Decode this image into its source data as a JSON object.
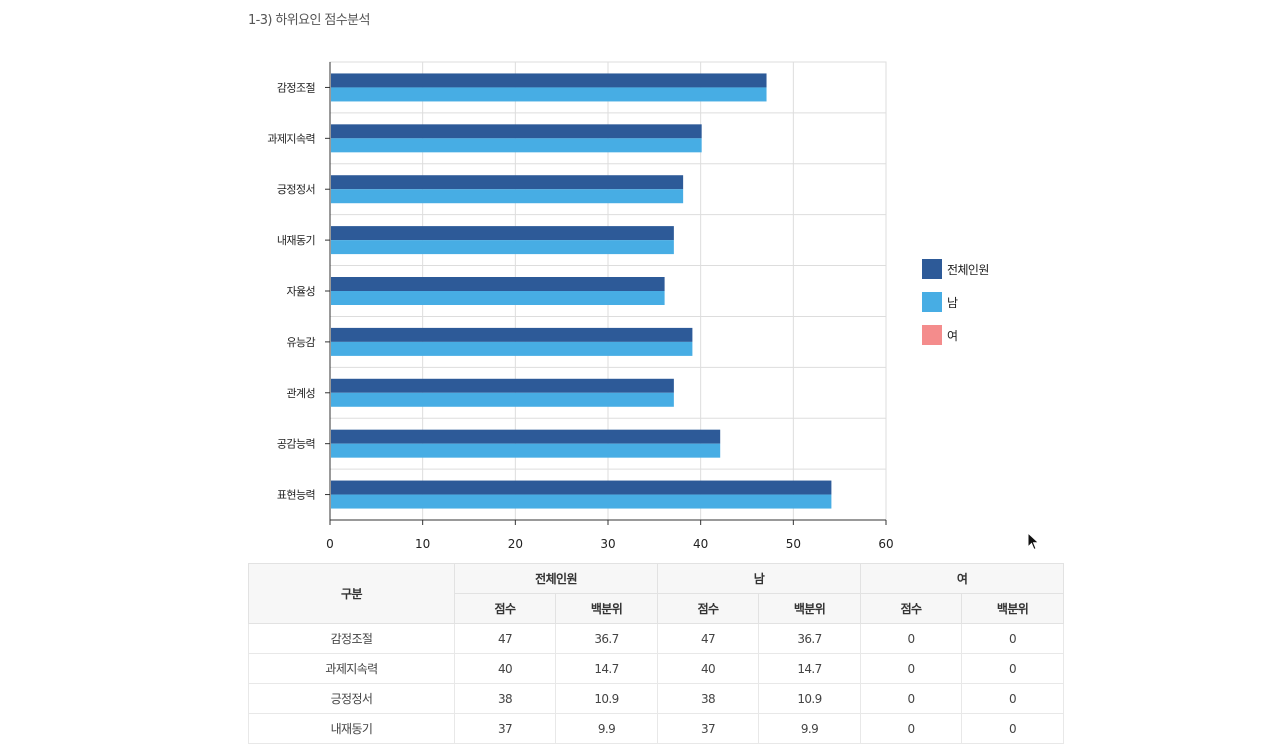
{
  "section_title": "1-3) 하위요인 점수분석",
  "chart_data": {
    "type": "bar",
    "orientation": "horizontal",
    "categories": [
      "감정조절",
      "과제지속력",
      "긍정정서",
      "내재동기",
      "자율성",
      "유능감",
      "관계성",
      "공감능력",
      "표현능력"
    ],
    "series": [
      {
        "name": "전체인원",
        "color": "#2d5a98",
        "values": [
          47,
          40,
          38,
          37,
          36,
          39,
          37,
          42,
          54
        ]
      },
      {
        "name": "남",
        "color": "#47ade4",
        "values": [
          47,
          40,
          38,
          37,
          36,
          39,
          37,
          42,
          54
        ]
      },
      {
        "name": "여",
        "color": "#f48c8c",
        "values": [
          0,
          0,
          0,
          0,
          0,
          0,
          0,
          0,
          0
        ]
      }
    ],
    "xlim": [
      0,
      60
    ],
    "xticks": [
      "0",
      "10",
      "20",
      "30",
      "40",
      "50",
      "60"
    ],
    "grid": true,
    "legend_position": "right"
  },
  "table": {
    "header_group": "구분",
    "groups": [
      "전체인원",
      "남",
      "여"
    ],
    "subheaders": [
      "점수",
      "백분위"
    ],
    "rows": [
      [
        "감정조절",
        "47",
        "36.7",
        "47",
        "36.7",
        "0",
        "0"
      ],
      [
        "과제지속력",
        "40",
        "14.7",
        "40",
        "14.7",
        "0",
        "0"
      ],
      [
        "긍정정서",
        "38",
        "10.9",
        "38",
        "10.9",
        "0",
        "0"
      ],
      [
        "내재동기",
        "37",
        "9.9",
        "37",
        "9.9",
        "0",
        "0"
      ]
    ]
  }
}
